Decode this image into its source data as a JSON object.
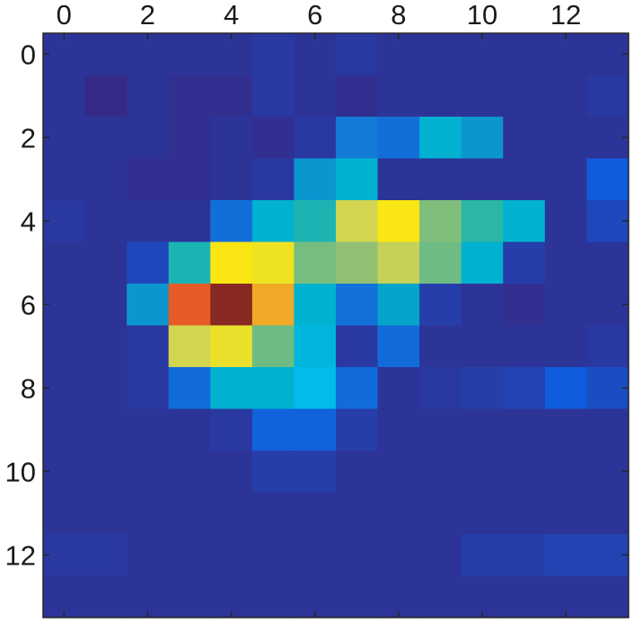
{
  "chart_data": {
    "type": "heatmap",
    "title": "",
    "xlabel": "",
    "ylabel": "",
    "x_axis_position": "top",
    "y_axis_direction": "down",
    "xlim": [
      -0.5,
      13.5
    ],
    "ylim": [
      -0.5,
      13.5
    ],
    "x_ticks": [
      0,
      2,
      4,
      6,
      8,
      10,
      12
    ],
    "y_ticks": [
      0,
      2,
      4,
      6,
      8,
      10,
      12
    ],
    "colormap": "parula",
    "grid": false,
    "legend": "none",
    "cells": [
      [
        0.02,
        0.02,
        0.02,
        0.02,
        0.02,
        0.03,
        0.02,
        0.03,
        0.02,
        0.02,
        0.02,
        0.02,
        0.02,
        0.02
      ],
      [
        0.02,
        0.0,
        0.02,
        0.01,
        0.01,
        0.03,
        0.02,
        0.01,
        0.02,
        0.02,
        0.02,
        0.02,
        0.02,
        0.03
      ],
      [
        0.02,
        0.02,
        0.02,
        0.01,
        0.02,
        0.01,
        0.03,
        0.18,
        0.15,
        0.48,
        0.26,
        0.02,
        0.02,
        0.02
      ],
      [
        0.02,
        0.02,
        0.01,
        0.01,
        0.02,
        0.03,
        0.26,
        0.48,
        0.02,
        0.02,
        0.02,
        0.02,
        0.02,
        0.1
      ],
      [
        0.03,
        0.02,
        0.02,
        0.02,
        0.15,
        0.48,
        0.55,
        0.8,
        0.88,
        0.68,
        0.58,
        0.48,
        0.02,
        0.06
      ],
      [
        0.02,
        0.02,
        0.06,
        0.55,
        0.88,
        0.86,
        0.67,
        0.7,
        0.78,
        0.66,
        0.48,
        0.04,
        0.02,
        0.02
      ],
      [
        0.02,
        0.02,
        0.26,
        0.95,
        1.0,
        0.93,
        0.48,
        0.16,
        0.3,
        0.04,
        0.02,
        0.01,
        0.02,
        0.02
      ],
      [
        0.02,
        0.02,
        0.03,
        0.8,
        0.85,
        0.66,
        0.44,
        0.03,
        0.14,
        0.02,
        0.02,
        0.02,
        0.02,
        0.03
      ],
      [
        0.02,
        0.02,
        0.03,
        0.14,
        0.48,
        0.48,
        0.4,
        0.14,
        0.02,
        0.03,
        0.04,
        0.05,
        0.1,
        0.07
      ],
      [
        0.02,
        0.02,
        0.02,
        0.02,
        0.03,
        0.12,
        0.12,
        0.04,
        0.02,
        0.02,
        0.02,
        0.02,
        0.02,
        0.02
      ],
      [
        0.02,
        0.02,
        0.02,
        0.02,
        0.02,
        0.04,
        0.04,
        0.02,
        0.02,
        0.02,
        0.02,
        0.02,
        0.02,
        0.02
      ],
      [
        0.02,
        0.02,
        0.02,
        0.02,
        0.02,
        0.02,
        0.02,
        0.02,
        0.02,
        0.02,
        0.02,
        0.02,
        0.02,
        0.02
      ],
      [
        0.03,
        0.03,
        0.02,
        0.02,
        0.02,
        0.02,
        0.02,
        0.02,
        0.02,
        0.02,
        0.04,
        0.04,
        0.05,
        0.05
      ],
      [
        0.02,
        0.02,
        0.02,
        0.02,
        0.02,
        0.02,
        0.02,
        0.02,
        0.02,
        0.02,
        0.02,
        0.02,
        0.02,
        0.02
      ]
    ]
  }
}
